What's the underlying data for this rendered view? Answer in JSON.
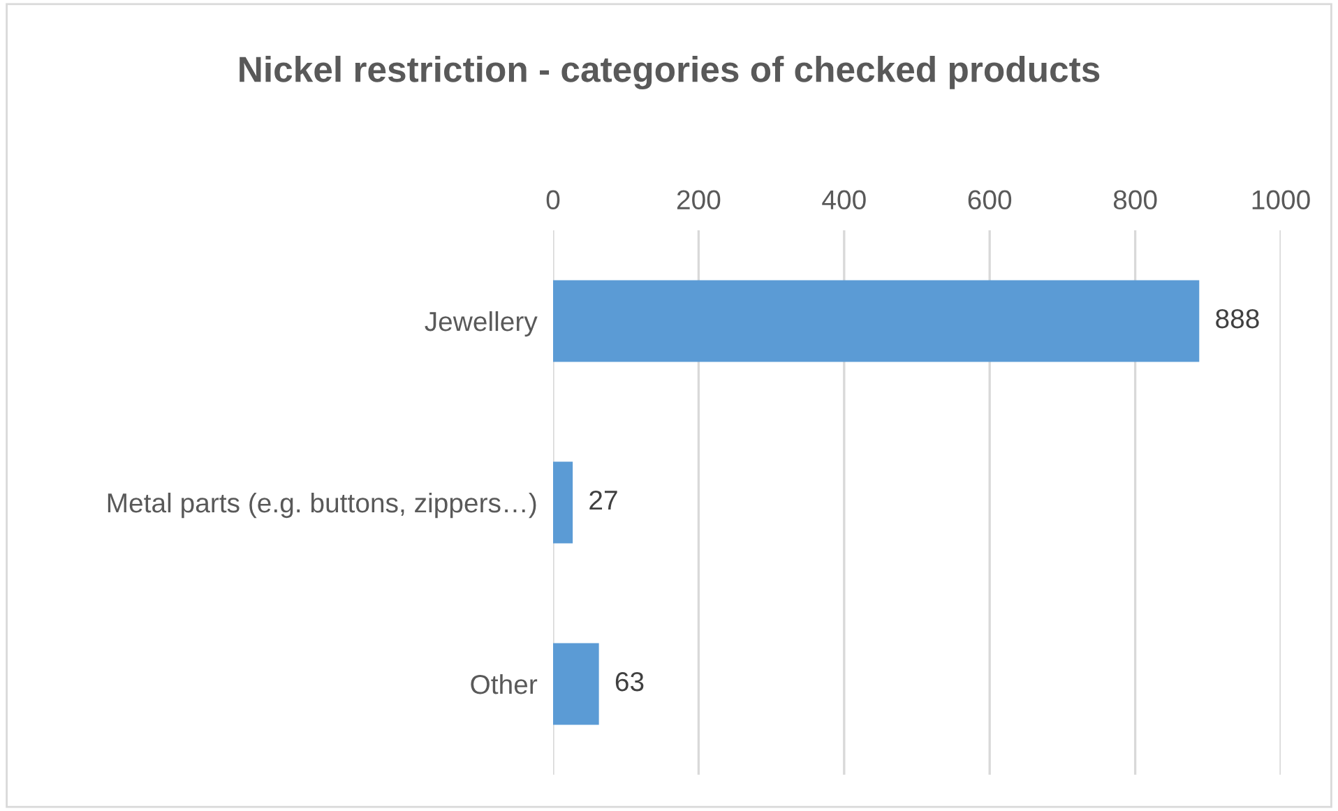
{
  "chart_data": {
    "type": "bar",
    "orientation": "horizontal",
    "title": "Nickel restriction - categories of checked products",
    "categories": [
      "Jewellery",
      "Metal parts (e.g. buttons, zippers…)",
      "Other"
    ],
    "values": [
      888,
      27,
      63
    ],
    "color": "#5b9bd5",
    "xlim": [
      0,
      1000
    ],
    "xticks": [
      0,
      200,
      400,
      600,
      800,
      1000
    ],
    "grid": "x",
    "data_labels": true
  }
}
